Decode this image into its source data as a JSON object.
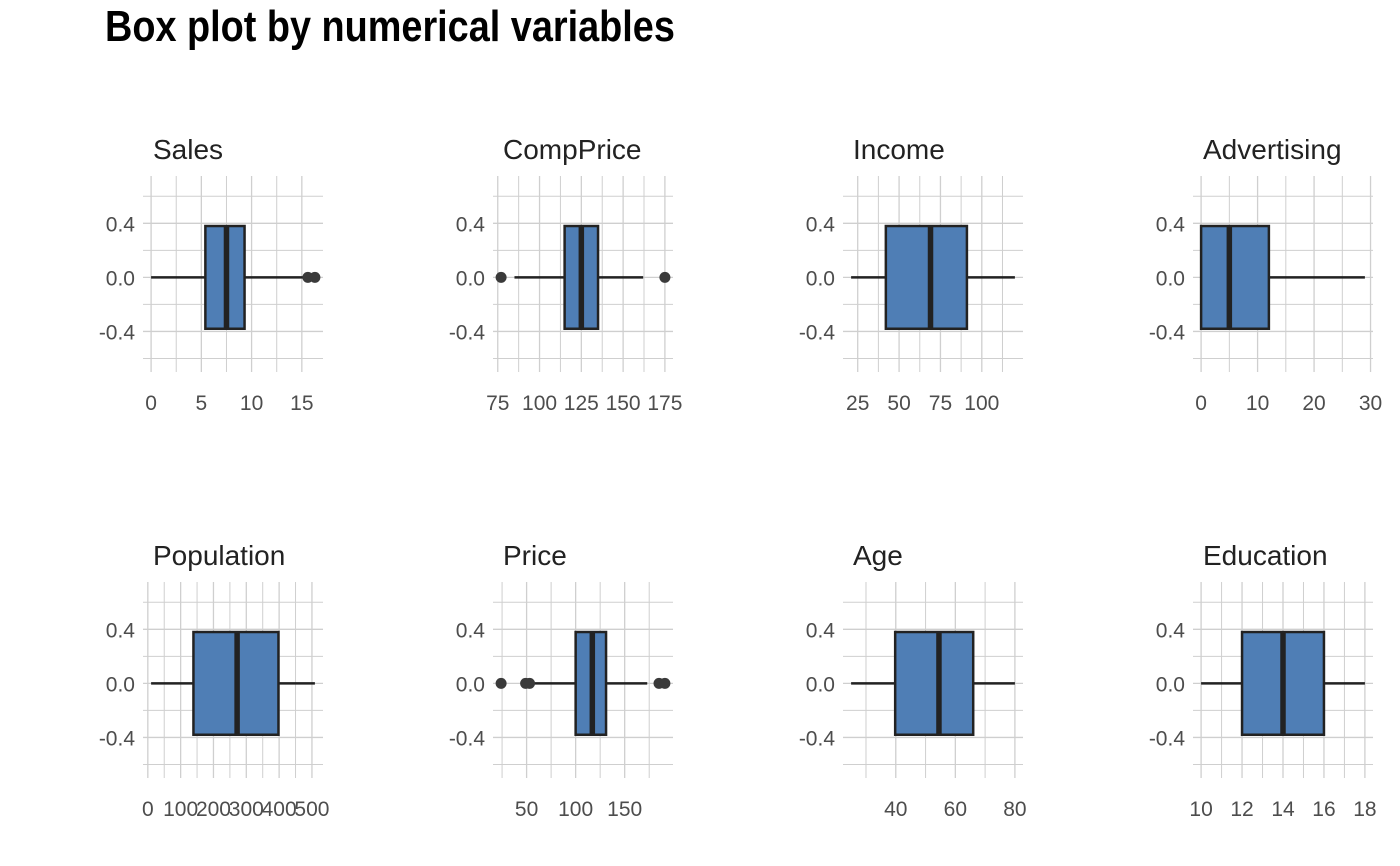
{
  "title": "Box plot by numerical variables",
  "colors": {
    "box_fill": "#4f7eb5",
    "box_stroke": "#222222",
    "grid": "#cfcfcf",
    "outlier": "#3a3a3a"
  },
  "chart_data": [
    {
      "type": "box",
      "title": "Sales",
      "x_ticks": [
        0,
        5,
        10,
        15
      ],
      "xlim": [
        0,
        16.3
      ],
      "y_ticks": [
        0.4,
        0.0,
        -0.4
      ],
      "y_tick_labels": [
        "0.4",
        "0.0",
        "-0.4"
      ],
      "ylim": [
        -0.7,
        0.75
      ],
      "stats": {
        "whisker_low": 0,
        "q1": 5.4,
        "median": 7.5,
        "q3": 9.3,
        "whisker_high": 15.1
      },
      "outliers": [
        15.6,
        16.3
      ]
    },
    {
      "type": "box",
      "title": "CompPrice",
      "x_ticks": [
        75,
        100,
        125,
        150,
        175
      ],
      "xlim": [
        77,
        175
      ],
      "y_ticks": [
        0.4,
        0.0,
        -0.4
      ],
      "y_tick_labels": [
        "0.4",
        "0.0",
        "-0.4"
      ],
      "ylim": [
        -0.7,
        0.75
      ],
      "stats": {
        "whisker_low": 85,
        "q1": 115,
        "median": 125,
        "q3": 135,
        "whisker_high": 162
      },
      "outliers": [
        77,
        175
      ]
    },
    {
      "type": "box",
      "title": "Income",
      "x_ticks": [
        25,
        50,
        75,
        100
      ],
      "xlim": [
        21,
        120
      ],
      "y_ticks": [
        0.4,
        0.0,
        -0.4
      ],
      "y_tick_labels": [
        "0.4",
        "0.0",
        "-0.4"
      ],
      "ylim": [
        -0.7,
        0.75
      ],
      "stats": {
        "whisker_low": 21,
        "q1": 42,
        "median": 69,
        "q3": 91,
        "whisker_high": 120
      },
      "outliers": []
    },
    {
      "type": "box",
      "title": "Advertising",
      "x_ticks": [
        0,
        10,
        20,
        30
      ],
      "xlim": [
        0,
        29
      ],
      "y_ticks": [
        0.4,
        0.0,
        -0.4
      ],
      "y_tick_labels": [
        "0.4",
        "0.0",
        "-0.4"
      ],
      "ylim": [
        -0.7,
        0.75
      ],
      "stats": {
        "whisker_low": 0,
        "q1": 0,
        "median": 5,
        "q3": 12,
        "whisker_high": 29
      },
      "outliers": []
    },
    {
      "type": "box",
      "title": "Population",
      "x_ticks": [
        0,
        100,
        200,
        300,
        400,
        500
      ],
      "xlim": [
        10,
        509
      ],
      "y_ticks": [
        0.4,
        0.0,
        -0.4
      ],
      "y_tick_labels": [
        "0.4",
        "0.0",
        "-0.4"
      ],
      "ylim": [
        -0.7,
        0.75
      ],
      "stats": {
        "whisker_low": 10,
        "q1": 139,
        "median": 272,
        "q3": 398,
        "whisker_high": 509
      },
      "outliers": []
    },
    {
      "type": "box",
      "title": "Price",
      "x_ticks": [
        50,
        100,
        150
      ],
      "xlim": [
        24,
        191
      ],
      "y_ticks": [
        0.4,
        0.0,
        -0.4
      ],
      "y_tick_labels": [
        "0.4",
        "0.0",
        "-0.4"
      ],
      "ylim": [
        -0.7,
        0.75
      ],
      "stats": {
        "whisker_low": 55,
        "q1": 100,
        "median": 117,
        "q3": 131,
        "whisker_high": 173
      },
      "outliers": [
        24,
        49,
        53,
        185,
        191
      ]
    },
    {
      "type": "box",
      "title": "Age",
      "x_ticks": [
        40,
        60,
        80
      ],
      "xlim": [
        25,
        80
      ],
      "y_ticks": [
        0.4,
        0.0,
        -0.4
      ],
      "y_tick_labels": [
        "0.4",
        "0.0",
        "-0.4"
      ],
      "ylim": [
        -0.7,
        0.75
      ],
      "stats": {
        "whisker_low": 25,
        "q1": 39.8,
        "median": 54.5,
        "q3": 66,
        "whisker_high": 80
      },
      "outliers": []
    },
    {
      "type": "box",
      "title": "Education",
      "x_ticks": [
        10,
        12,
        14,
        16,
        18
      ],
      "xlim": [
        10,
        18
      ],
      "y_ticks": [
        0.4,
        0.0,
        -0.4
      ],
      "y_tick_labels": [
        "0.4",
        "0.0",
        "-0.4"
      ],
      "ylim": [
        -0.7,
        0.75
      ],
      "stats": {
        "whisker_low": 10,
        "q1": 12,
        "median": 14,
        "q3": 16,
        "whisker_high": 18
      },
      "outliers": []
    }
  ]
}
